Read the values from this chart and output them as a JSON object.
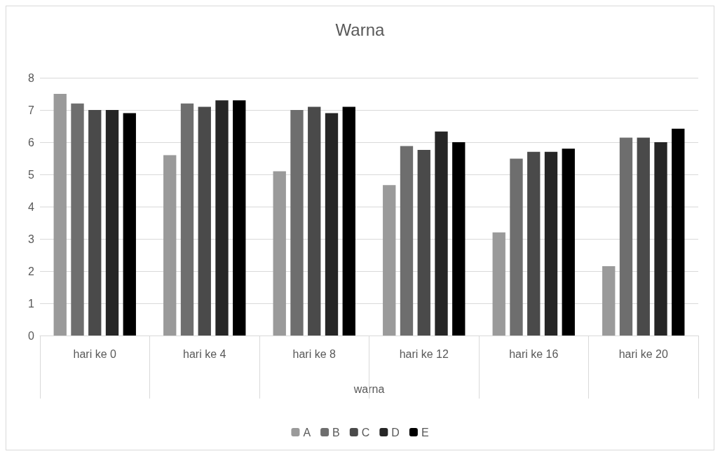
{
  "chart_data": {
    "type": "bar",
    "title": "Warna",
    "xlabel": "warna",
    "categories": [
      "hari ke 0",
      "hari ke 4",
      "hari ke 8",
      "hari ke 12",
      "hari ke 16",
      "hari ke 20"
    ],
    "series": [
      {
        "name": "A",
        "color": "#9a9a9a",
        "values": [
          7.5,
          5.6,
          5.1,
          4.67,
          3.2,
          2.15
        ]
      },
      {
        "name": "B",
        "color": "#6e6e6e",
        "values": [
          7.2,
          7.2,
          7.0,
          5.88,
          5.49,
          6.14
        ]
      },
      {
        "name": "C",
        "color": "#4a4a4a",
        "values": [
          7.0,
          7.1,
          7.1,
          5.76,
          5.7,
          6.14
        ]
      },
      {
        "name": "D",
        "color": "#262626",
        "values": [
          7.0,
          7.3,
          6.9,
          6.33,
          5.7,
          6.0
        ]
      },
      {
        "name": "E",
        "color": "#000000",
        "values": [
          6.9,
          7.3,
          7.1,
          6.0,
          5.8,
          6.42
        ]
      }
    ],
    "ylim": [
      0,
      8
    ],
    "yticks": [
      0,
      1,
      2,
      3,
      4,
      5,
      6,
      7,
      8
    ],
    "grid": "y",
    "legend": "bottom"
  }
}
